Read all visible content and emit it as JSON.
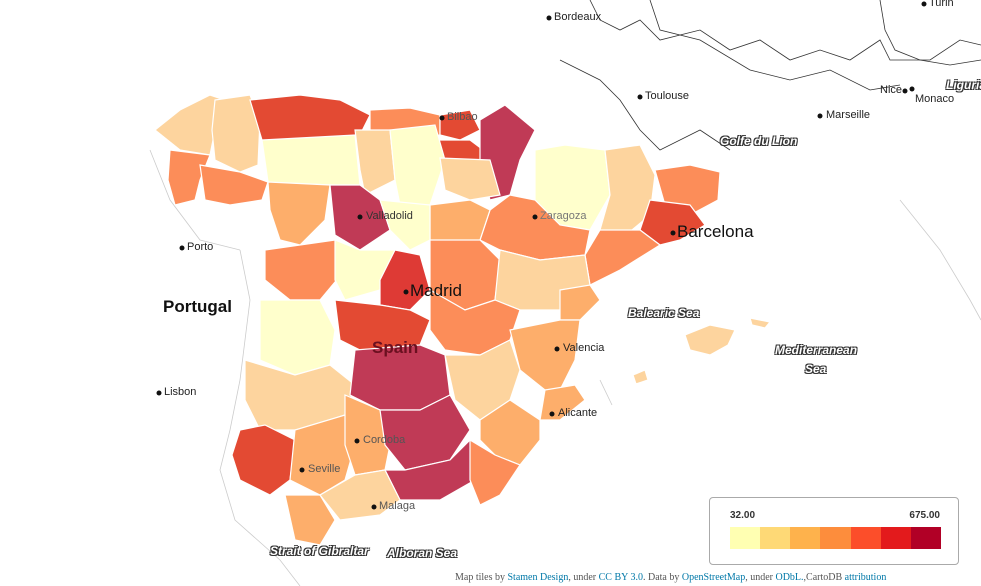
{
  "map": {
    "cities": [
      {
        "name": "Bordeaux",
        "key": "bordeaux"
      },
      {
        "name": "Toulouse",
        "key": "toulouse"
      },
      {
        "name": "Marseille",
        "key": "marseille"
      },
      {
        "name": "Nice",
        "key": "nice"
      },
      {
        "name": "Monaco",
        "key": "monaco"
      },
      {
        "name": "Turin",
        "key": "turin"
      },
      {
        "name": "Bilbao",
        "key": "bilbao"
      },
      {
        "name": "Valladolid",
        "key": "valladolid"
      },
      {
        "name": "Zaragoza",
        "key": "zaragoza"
      },
      {
        "name": "Barcelona",
        "key": "barcelona"
      },
      {
        "name": "Porto",
        "key": "porto"
      },
      {
        "name": "Madrid",
        "key": "madrid"
      },
      {
        "name": "Lisbon",
        "key": "lisbon"
      },
      {
        "name": "Valencia",
        "key": "valencia"
      },
      {
        "name": "Alicante",
        "key": "alicante"
      },
      {
        "name": "Cordoba",
        "key": "cordoba"
      },
      {
        "name": "Seville",
        "key": "seville"
      },
      {
        "name": "Malaga",
        "key": "malaga"
      }
    ],
    "countries": {
      "portugal": "Portugal",
      "spain": "Spain"
    },
    "seas": {
      "golfe": "Golfe du Lion",
      "balearic": "Balearic Sea",
      "mediterranean_1": "Mediterranean",
      "mediterranean_2": "Sea",
      "gibraltar": "Strait of Gibraltar",
      "alboran": "Alboran Sea",
      "ligurian": "Ligurian"
    }
  },
  "legend": {
    "min": "32.00",
    "max": "675.00",
    "colors": [
      "#ffffb2",
      "#fed976",
      "#feb24c",
      "#fd8d3c",
      "#fc4e2a",
      "#e31a1c",
      "#b10026"
    ]
  },
  "attribution": {
    "prefix": "Map tiles by",
    "stamen": "Stamen Design",
    "under1": ", under",
    "cc": "CC BY 3.0",
    "data_by": ". Data by",
    "osm": "OpenStreetMap",
    "under2": ", under",
    "odbl": "ODbL.",
    "carto": ",CartoDB",
    "attr": "attribution"
  }
}
